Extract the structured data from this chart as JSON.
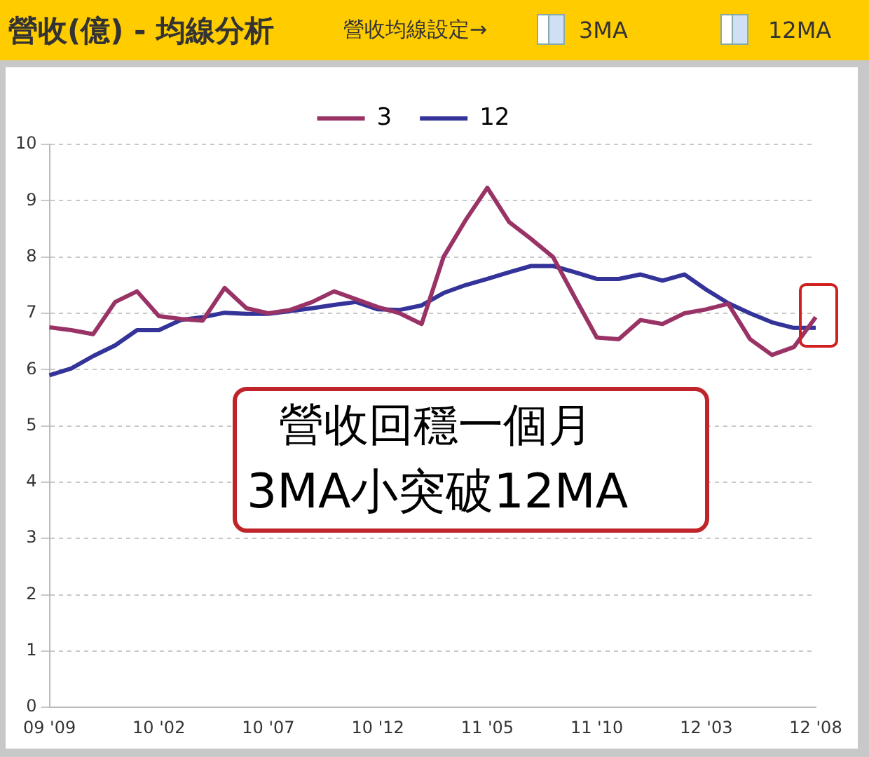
{
  "chart_data": {
    "type": "line",
    "title": "營收(億) - 均線分析",
    "annotations": [
      "營收均線設定→",
      "3MA",
      "12MA",
      "營收回穩一個月",
      "3MA小突破12MA"
    ],
    "categories": [
      "09 '09",
      null,
      null,
      null,
      null,
      "10 '02",
      null,
      null,
      null,
      null,
      "10 '07",
      null,
      null,
      null,
      null,
      "10 '12",
      null,
      null,
      null,
      null,
      "11 '05",
      null,
      null,
      null,
      null,
      "11 '10",
      null,
      null,
      null,
      null,
      "12 '03",
      null,
      null,
      null,
      null,
      "12 '08"
    ],
    "series": [
      {
        "name": "3",
        "color": "#993366",
        "values": [
          6.75,
          6.7,
          6.63,
          7.2,
          7.39,
          6.95,
          6.9,
          6.87,
          7.45,
          7.09,
          7.0,
          7.06,
          7.2,
          7.39,
          7.25,
          7.11,
          7.0,
          6.81,
          8.0,
          8.65,
          9.23,
          8.62,
          8.32,
          8.0,
          7.28,
          6.57,
          6.54,
          6.88,
          6.81,
          7.0,
          7.07,
          7.17,
          6.54,
          6.26,
          6.4,
          6.93
        ]
      },
      {
        "name": "12",
        "color": "#333399",
        "values": [
          5.9,
          6.02,
          6.24,
          6.43,
          6.7,
          6.7,
          6.88,
          6.93,
          7.01,
          6.99,
          6.99,
          7.04,
          7.09,
          7.15,
          7.2,
          7.07,
          7.06,
          7.14,
          7.36,
          7.5,
          7.61,
          7.73,
          7.84,
          7.84,
          7.73,
          7.61,
          7.61,
          7.69,
          7.58,
          7.69,
          7.42,
          7.18,
          7.0,
          6.84,
          6.74,
          6.74
        ]
      }
    ],
    "ylim": [
      0,
      10
    ],
    "yticks": [
      0,
      1,
      2,
      3,
      4,
      5,
      6,
      7,
      8,
      9,
      10
    ],
    "grid": true,
    "legend": "top",
    "marker": "none",
    "line_style": "solid"
  }
}
